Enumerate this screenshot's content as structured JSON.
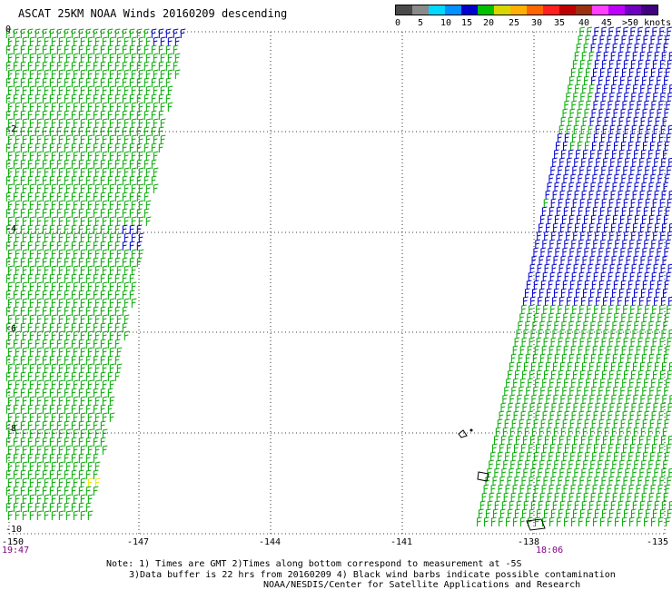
{
  "title": "ASCAT 25KM NOAA Winds 20160209 descending",
  "legend": {
    "colors": [
      "#4a4a4a",
      "#8a8a8a",
      "#00d8ff",
      "#0090ff",
      "#0000cc",
      "#00c000",
      "#d8d800",
      "#ffb000",
      "#ff6600",
      "#ff2020",
      "#c00000",
      "#9a3010",
      "#ff40ff",
      "#c000ff",
      "#7000c0",
      "#400080"
    ],
    "labels": [
      "0",
      "5",
      "10",
      "15",
      "20",
      "25",
      "30",
      "35",
      "40",
      "45",
      ">50 knots"
    ]
  },
  "axes": {
    "lon_labels": [
      "-150",
      "-147",
      "-144",
      "-141",
      "-138",
      "-135"
    ],
    "lat_labels": [
      "0",
      "-2",
      "-4",
      "-6",
      "-8",
      "-10"
    ]
  },
  "swath_times": {
    "left": "19:47",
    "right": "18:06"
  },
  "notes": {
    "line1": "Note: 1) Times are GMT 2)Times along bottom correspond to measurement at -5S",
    "line2": "3)Data buffer is 22 hrs from 20160209 4) Black wind barbs indicate possible contamination",
    "line3": "NOAA/NESDIS/Center for Satellite Applications and Research"
  },
  "barb_colors": {
    "green": "#00aa00",
    "blue": "#0000cc",
    "yellow": "#e8e800",
    "black": "#000000"
  }
}
